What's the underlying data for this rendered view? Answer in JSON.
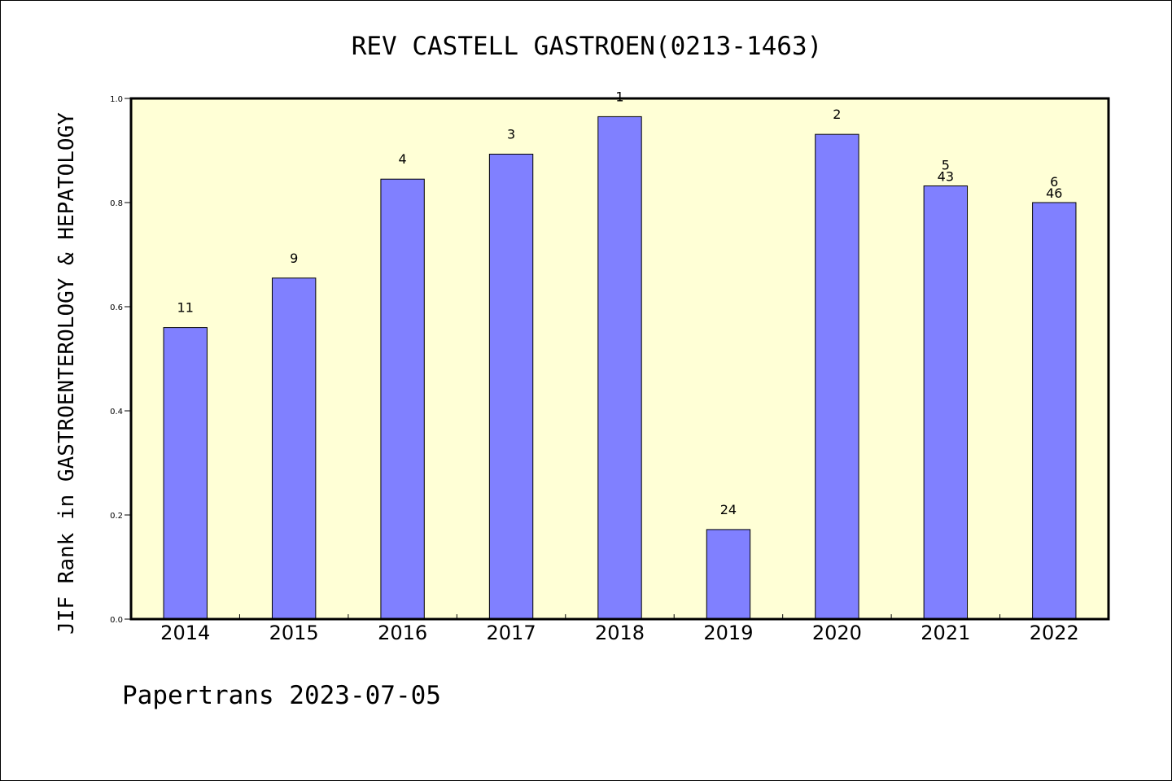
{
  "chart_data": {
    "type": "bar",
    "title": "REV CASTELL GASTROEN(0213-1463)",
    "xlabel": "",
    "ylabel": "JIF Rank in GASTROENTEROLOGY & HEPATOLOGY",
    "ylim": [
      0,
      1
    ],
    "yticks": [
      "0.0",
      "0.2",
      "0.4",
      "0.6",
      "0.8",
      "1.0"
    ],
    "categories": [
      "2014",
      "2015",
      "2016",
      "2017",
      "2018",
      "2019",
      "2020",
      "2021",
      "2022"
    ],
    "values": [
      0.56,
      0.655,
      0.845,
      0.893,
      0.965,
      0.172,
      0.931,
      0.832,
      0.8
    ],
    "rank_labels": [
      "11",
      "9",
      "4",
      "3",
      "1",
      "24",
      "2",
      "5",
      "6"
    ],
    "total_labels": [
      "",
      "",
      "",
      "",
      "",
      "",
      "",
      "43",
      "46"
    ],
    "grid": false,
    "colors": {
      "plot_background": "#ffffd6",
      "bar": "#8080ff",
      "bar_edge": "#000000"
    }
  },
  "footer": "Papertrans 2023-07-05"
}
